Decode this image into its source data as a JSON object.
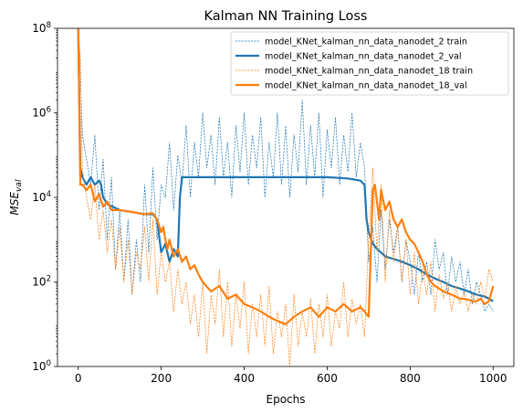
{
  "chart_data": {
    "type": "line",
    "title": "Kalman NN Training Loss",
    "xlabel": "Epochs",
    "ylabel_main": "MSE",
    "ylabel_sub": "val",
    "xlim": [
      -50,
      1050
    ],
    "ylim": [
      1,
      100000000
    ],
    "yscale": "log",
    "x_ticks": [
      0,
      200,
      400,
      600,
      800,
      1000
    ],
    "y_ticks": [
      {
        "exp": "0",
        "value": 1
      },
      {
        "exp": "2",
        "value": 100
      },
      {
        "exp": "4",
        "value": 10000
      },
      {
        "exp": "6",
        "value": 1000000
      },
      {
        "exp": "8",
        "value": 100000000
      }
    ],
    "grid": false,
    "legend_position": "top-right",
    "colors": {
      "blue": "#1f77b4",
      "orange": "#ff7f0e"
    },
    "series": [
      {
        "name": "model_KNet_kalman_nn_data_nanodet_2 train",
        "color": "#1f77b4",
        "style": "dashed",
        "width": 0.7,
        "x": [
          0,
          5,
          10,
          20,
          30,
          40,
          50,
          60,
          70,
          80,
          90,
          100,
          110,
          120,
          130,
          140,
          150,
          160,
          170,
          180,
          190,
          200,
          210,
          220,
          230,
          240,
          250,
          260,
          270,
          280,
          290,
          300,
          310,
          320,
          330,
          340,
          350,
          360,
          370,
          380,
          390,
          400,
          410,
          420,
          430,
          440,
          450,
          460,
          470,
          480,
          490,
          500,
          510,
          520,
          530,
          540,
          550,
          560,
          570,
          580,
          590,
          600,
          610,
          620,
          630,
          640,
          650,
          660,
          670,
          680,
          690,
          700,
          710,
          720,
          730,
          740,
          750,
          760,
          770,
          780,
          790,
          800,
          810,
          820,
          830,
          840,
          850,
          860,
          870,
          880,
          890,
          900,
          910,
          920,
          930,
          940,
          950,
          960,
          970,
          980,
          990,
          1000
        ],
        "y": [
          100000000,
          10000000,
          300000,
          80000,
          20000,
          300000,
          5000,
          80000,
          1000,
          30000,
          200,
          5000,
          100,
          3000,
          50,
          1000,
          100,
          20000,
          500,
          50000,
          1000,
          20000,
          10000,
          200000,
          5000,
          100000,
          20000,
          500000,
          10000,
          200000,
          30000,
          1000000,
          50000,
          300000,
          20000,
          800000,
          30000,
          200000,
          10000,
          500000,
          40000,
          1000000,
          20000,
          300000,
          50000,
          800000,
          10000,
          200000,
          30000,
          1000000,
          20000,
          500000,
          10000,
          300000,
          40000,
          2000000,
          20000,
          500000,
          30000,
          1000000,
          10000,
          400000,
          50000,
          800000,
          20000,
          300000,
          40000,
          1000000,
          30000,
          200000,
          50000,
          300,
          2000,
          100,
          5000,
          200,
          3000,
          500,
          2000,
          100,
          1000,
          300,
          50,
          500,
          100,
          300,
          50,
          1000,
          200,
          500,
          50,
          400,
          100,
          300,
          50,
          200,
          30,
          100,
          50,
          20,
          30,
          20
        ]
      },
      {
        "name": "model_KNet_kalman_nn_data_nanodet_2_val",
        "color": "#1f77b4",
        "style": "solid",
        "width": 2.2,
        "x": [
          0,
          5,
          10,
          20,
          30,
          40,
          50,
          55,
          60,
          70,
          100,
          130,
          160,
          180,
          190,
          200,
          210,
          220,
          230,
          240,
          245,
          250,
          300,
          400,
          500,
          600,
          650,
          680,
          690,
          695,
          700,
          710,
          720,
          730,
          740,
          760,
          780,
          800,
          820,
          840,
          860,
          880,
          900,
          920,
          940,
          960,
          980,
          990,
          1000
        ],
        "y": [
          100000000,
          50000,
          30000,
          20000,
          30000,
          20000,
          25000,
          20000,
          10000,
          7000,
          5000,
          4500,
          4000,
          4000,
          3000,
          500,
          800,
          300,
          600,
          400,
          10000,
          30000,
          30000,
          30000,
          30000,
          30000,
          28000,
          25000,
          20000,
          3000,
          1500,
          800,
          600,
          500,
          400,
          350,
          300,
          250,
          200,
          150,
          120,
          100,
          80,
          70,
          60,
          50,
          45,
          40,
          35
        ]
      },
      {
        "name": "model_KNet_kalman_nn_data_nanodet_18 train",
        "color": "#ff7f0e",
        "style": "dashed",
        "width": 0.7,
        "x": [
          0,
          5,
          10,
          15,
          20,
          30,
          40,
          50,
          60,
          70,
          80,
          90,
          100,
          110,
          120,
          130,
          140,
          150,
          160,
          170,
          180,
          190,
          200,
          210,
          220,
          230,
          240,
          250,
          260,
          270,
          280,
          290,
          300,
          310,
          320,
          330,
          340,
          350,
          360,
          370,
          380,
          390,
          400,
          410,
          420,
          430,
          440,
          450,
          460,
          470,
          480,
          490,
          500,
          510,
          520,
          530,
          540,
          550,
          560,
          570,
          580,
          590,
          600,
          610,
          620,
          630,
          640,
          650,
          660,
          670,
          680,
          690,
          700,
          710,
          720,
          730,
          740,
          750,
          760,
          770,
          780,
          790,
          800,
          810,
          820,
          830,
          840,
          850,
          860,
          870,
          880,
          890,
          900,
          910,
          920,
          930,
          940,
          950,
          960,
          970,
          980,
          990,
          1000
        ],
        "y": [
          100000000,
          20000000,
          50000,
          20000,
          10000,
          3000,
          20000,
          1000,
          5000,
          500,
          3000,
          200,
          2000,
          100,
          1000,
          50,
          500,
          200,
          2000,
          100,
          3000,
          50,
          500,
          100,
          300,
          20,
          200,
          30,
          100,
          10,
          50,
          5,
          100,
          2,
          50,
          10,
          200,
          5,
          100,
          3,
          50,
          8,
          100,
          2,
          30,
          5,
          50,
          3,
          80,
          2,
          20,
          5,
          30,
          1,
          50,
          3,
          20,
          5,
          40,
          2,
          30,
          5,
          50,
          3,
          20,
          8,
          100,
          5,
          40,
          10,
          30,
          5,
          1000,
          50000,
          500,
          20000,
          100,
          5000,
          300,
          2000,
          100,
          1000,
          50,
          500,
          30,
          200,
          50,
          300,
          20,
          150,
          40,
          100,
          20,
          80,
          30,
          60,
          20,
          50,
          30,
          100,
          40,
          200,
          100
        ]
      },
      {
        "name": "model_KNet_kalman_nn_data_nanodet_18_val",
        "color": "#ff7f0e",
        "style": "solid",
        "width": 2.2,
        "x": [
          0,
          5,
          10,
          20,
          30,
          40,
          50,
          60,
          70,
          80,
          100,
          130,
          160,
          180,
          190,
          200,
          205,
          210,
          215,
          220,
          230,
          240,
          250,
          260,
          270,
          280,
          290,
          300,
          320,
          340,
          360,
          380,
          400,
          420,
          440,
          460,
          480,
          500,
          520,
          540,
          560,
          580,
          600,
          620,
          640,
          660,
          680,
          690,
          700,
          710,
          715,
          720,
          725,
          730,
          740,
          750,
          760,
          770,
          780,
          790,
          800,
          810,
          820,
          830,
          840,
          850,
          860,
          870,
          880,
          890,
          900,
          910,
          920,
          930,
          940,
          950,
          960,
          970,
          980,
          990,
          1000
        ],
        "y": [
          100000000,
          20000,
          20000,
          15000,
          20000,
          8000,
          12000,
          6000,
          8000,
          5000,
          5000,
          4500,
          4000,
          4200,
          3000,
          1500,
          2000,
          1000,
          600,
          1000,
          400,
          600,
          300,
          400,
          200,
          250,
          150,
          100,
          60,
          80,
          40,
          50,
          30,
          25,
          20,
          15,
          12,
          10,
          15,
          20,
          25,
          15,
          25,
          20,
          30,
          20,
          25,
          20,
          15,
          15000,
          20000,
          8000,
          3000,
          15000,
          5000,
          8000,
          3000,
          2000,
          3000,
          1500,
          1000,
          800,
          500,
          300,
          150,
          100,
          80,
          70,
          60,
          55,
          50,
          45,
          40,
          40,
          38,
          35,
          35,
          40,
          30,
          35,
          80
        ]
      }
    ]
  }
}
